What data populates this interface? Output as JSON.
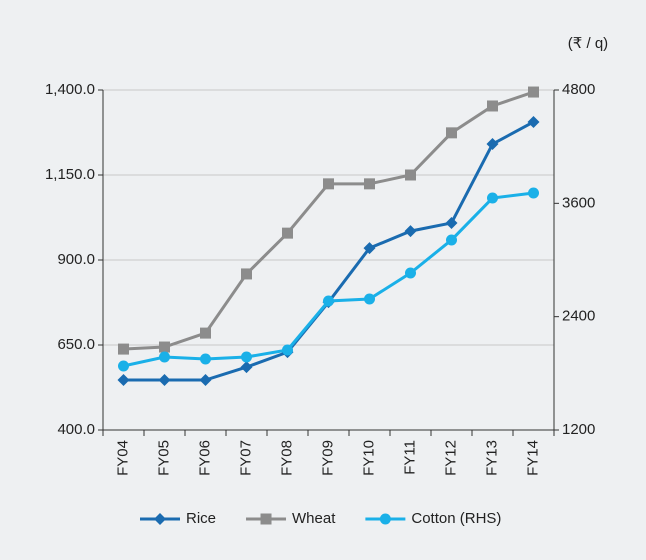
{
  "chart_data": {
    "type": "line",
    "unit_label": "(₹ / q)",
    "categories": [
      "FY04",
      "FY05",
      "FY06",
      "FY07",
      "FY08",
      "FY09",
      "FY10",
      "FY11",
      "FY12",
      "FY13",
      "FY14"
    ],
    "series": [
      {
        "name": "Rice",
        "color": "#1a6bb0",
        "marker": "diamond",
        "values": [
          547,
          547,
          547,
          585,
          629,
          776,
          935,
          985,
          1009,
          1241,
          1306
        ]
      },
      {
        "name": "Wheat",
        "color": "#8c8c8c",
        "marker": "square",
        "values": [
          638,
          644,
          685,
          859,
          979,
          1124,
          1124,
          1150,
          1274,
          1353,
          1394
        ]
      },
      {
        "name": "Cotton (RHS)",
        "color": "#1ab0e8",
        "marker": "circle",
        "axis": "y2",
        "values": [
          1878,
          1973,
          1952,
          1973,
          2047,
          2566,
          2587,
          2862,
          3212,
          3656,
          3709
        ]
      }
    ],
    "ylim": [
      400,
      1400
    ],
    "yticks": [
      {
        "value": 400,
        "label": "400.0"
      },
      {
        "value": 650,
        "label": "650.0"
      },
      {
        "value": 900,
        "label": "900.0"
      },
      {
        "value": 1150,
        "label": "1,150.0"
      },
      {
        "value": 1400,
        "label": "1,400.0"
      }
    ],
    "y2lim": [
      1200,
      4800
    ],
    "y2ticks": [
      1200,
      2400,
      3600,
      4800
    ],
    "grid": true,
    "legend": "bottom"
  }
}
